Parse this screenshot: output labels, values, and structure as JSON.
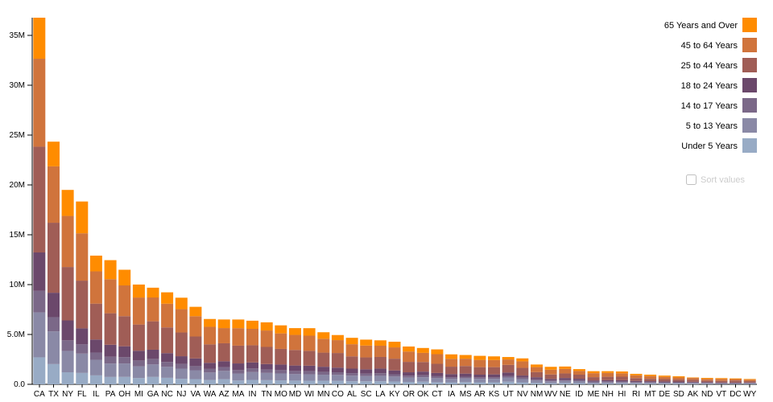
{
  "controls": {
    "sort_label": "Sort values"
  },
  "chart_data": {
    "type": "bar",
    "stacked": true,
    "title": "",
    "xlabel": "",
    "ylabel": "",
    "grid": false,
    "legend_position": "top-right",
    "ylim": [
      0,
      36756666
    ],
    "ytick_values": [
      0,
      5000000,
      10000000,
      15000000,
      20000000,
      25000000,
      30000000,
      35000000
    ],
    "ytick_labels": [
      "0.0",
      "5.0M",
      "10M",
      "15M",
      "20M",
      "25M",
      "30M",
      "35M"
    ],
    "categories": [
      "CA",
      "TX",
      "NY",
      "FL",
      "IL",
      "PA",
      "OH",
      "MI",
      "GA",
      "NC",
      "NJ",
      "VA",
      "WA",
      "AZ",
      "MA",
      "IN",
      "TN",
      "MO",
      "MD",
      "WI",
      "MN",
      "CO",
      "AL",
      "SC",
      "LA",
      "KY",
      "OR",
      "OK",
      "CT",
      "IA",
      "MS",
      "AR",
      "KS",
      "UT",
      "NV",
      "NM",
      "WV",
      "NE",
      "ID",
      "ME",
      "NH",
      "HI",
      "RI",
      "MT",
      "DE",
      "SD",
      "AK",
      "ND",
      "VT",
      "DC",
      "WY"
    ],
    "series": [
      {
        "name": "Under 5 Years",
        "color": "#98abc5",
        "values": [
          2704659,
          2027307,
          1208495,
          1140516,
          894368,
          737462,
          743750,
          625526,
          740521,
          652823,
          557421,
          522672,
          433119,
          515910,
          383568,
          443089,
          416334,
          399450,
          371787,
          362277,
          358471,
          358280,
          310504,
          303024,
          310716,
          284601,
          243483,
          266547,
          211637,
          201321,
          220813,
          202070,
          202529,
          268916,
          199175,
          148323,
          105435,
          132092,
          121746,
          71459,
          75297,
          87207,
          60934,
          61114,
          59319,
          58566,
          52083,
          41896,
          32635,
          36352,
          38253
        ]
      },
      {
        "name": "5 to 13 Years",
        "color": "#8a89a6",
        "values": [
          4499890,
          3277946,
          2141490,
          1938695,
          1558919,
          1345341,
          1340492,
          1179503,
          1250460,
          1097890,
          1011656,
          887525,
          750274,
          828669,
          701752,
          780199,
          725948,
          690476,
          651923,
          640286,
          606802,
          587154,
          552339,
          517803,
          542341,
          493536,
          424167,
          438926,
          403658,
          345409,
          371502,
          343207,
          342134,
          413034,
          325650,
          241326,
          189649,
          215265,
          201192,
          133656,
          144235,
          134025,
          111408,
          106088,
          99496,
          94438,
          85640,
          67358,
          62538,
          50439,
          60890
        ]
      },
      {
        "name": "14 to 17 Years",
        "color": "#7b6888",
        "values": [
          2159981,
          1420518,
          1058031,
          925060,
          725973,
          679201,
          646135,
          585169,
          557860,
          492964,
          478505,
          413004,
          357782,
          362642,
          341713,
          361393,
          336312,
          331543,
          316873,
          311849,
          289371,
          261701,
          259034,
          245400,
          254916,
          229927,
          199925,
          200562,
          196918,
          165883,
          174405,
          157204,
          155822,
          167685,
          142976,
          112801,
          91074,
          99638,
          89702,
          69752,
          73826,
          64011,
          56198,
          53156,
          47414,
          45305,
          42153,
          33794,
          33757,
          25225,
          29314
        ]
      },
      {
        "name": "18 to 24 Years",
        "color": "#6b486b",
        "values": [
          3853788,
          2454721,
          1999120,
          1607297,
          1311479,
          1203944,
          1081734,
          974480,
          919876,
          883397,
          769321,
          768475,
          610378,
          601943,
          665879,
          605863,
          550612,
          560463,
          543470,
          553914,
          507289,
          466194,
          450818,
          438147,
          471275,
          381394,
          338162,
          369916,
          325110,
          306398,
          305964,
          264160,
          293114,
          329585,
          212379,
          203097,
          157989,
          186657,
          147606,
          112682,
          119114,
          124834,
          114502,
          95232,
          84464,
          82869,
          74257,
          82629,
          61679,
          75569,
          53980
        ]
      },
      {
        "name": "25 to 44 Years",
        "color": "#a05d56",
        "values": [
          10604510,
          7017731,
          5355235,
          4782119,
          3596343,
          3157759,
          3019147,
          2628322,
          2846985,
          2575603,
          2379649,
          2203286,
          1850983,
          1804762,
          1782449,
          1724528,
          1719433,
          1569626,
          1556225,
          1487457,
          1416063,
          1464939,
          1231572,
          1193112,
          1162463,
          1179637,
          1044056,
          957085,
          916955,
          750505,
          764203,
          754420,
          728166,
          772024,
          769913,
          517154,
          444002,
          457177,
          406247,
          331809,
          345109,
          356237,
          277779,
          236297,
          230183,
          196738,
          198724,
          154913,
          155419,
          193557,
          137338
        ]
      },
      {
        "name": "45 to 64 Years",
        "color": "#d0743c",
        "values": [
          8819342,
          5656528,
          5120254,
          4746856,
          3239173,
          3414001,
          3083815,
          2706100,
          2389018,
          2380685,
          2335168,
          2033550,
          1762811,
          1523681,
          1751508,
          1647881,
          1646623,
          1554812,
          1513754,
          1522038,
          1391878,
          1290094,
          1215966,
          1186019,
          1128771,
          1134283,
          1036269,
          918688,
          968967,
          788485,
          730133,
          727124,
          713663,
          538978,
          653357,
          501604,
          479682,
          451756,
          375173,
          397911,
          388250,
          331817,
          282321,
          278241,
          230528,
          210178,
          183159,
          166615,
          188593,
          140043,
          147279
        ]
      },
      {
        "name": "65 Years and Over",
        "color": "#ff8c00",
        "values": [
          4114496,
          2472223,
          2607672,
          3187797,
          1575308,
          1910571,
          1570837,
          1304322,
          981024,
          1139052,
          1150941,
          940577,
          783877,
          862573,
          871098,
          813839,
          819626,
          805235,
          679565,
          750146,
          650519,
          511094,
          641667,
          596295,
          540314,
          565867,
          503998,
          490637,
          478007,
          444554,
          371598,
          407205,
          366706,
          246202,
          296717,
          260051,
          285067,
          240847,
          182150,
          199187,
          169978,
          190067,
          147646,
          137312,
          121688,
          116100,
          50277,
          94276,
          86649,
          70648,
          65614
        ]
      }
    ]
  }
}
